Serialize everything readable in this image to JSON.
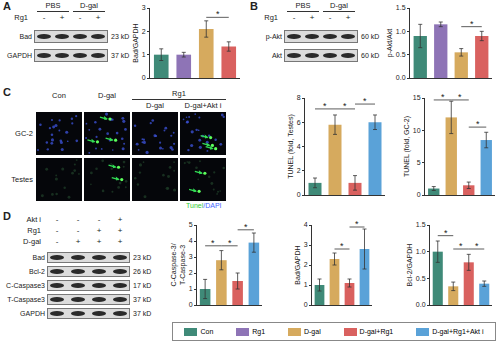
{
  "chart_data": [
    {
      "type": "bar",
      "y_label": "Bad/GAPDH",
      "categories": [
        "Con",
        "Rg1",
        "D-gal",
        "D-gal+Rg1"
      ],
      "values": [
        1.0,
        1.0,
        2.1,
        1.35
      ],
      "errors": [
        0.25,
        0.1,
        0.35,
        0.2
      ],
      "colors": [
        "#3f8a78",
        "#8e74b6",
        "#d6aa5e",
        "#d9615f"
      ],
      "ylim": [
        0,
        3
      ],
      "yticks": [
        0,
        1,
        2,
        3
      ],
      "tick_labels": "y",
      "annotations": [
        {
          "text": "*",
          "from": 2,
          "to": 3,
          "y": 2.6
        }
      ]
    },
    {
      "type": "bar",
      "y_label": "p-Akt/Akt",
      "categories": [
        "Con",
        "Rg1",
        "D-gal",
        "D-gal+Rg1"
      ],
      "values": [
        0.9,
        1.15,
        0.55,
        0.9
      ],
      "errors": [
        0.25,
        0.05,
        0.08,
        0.1
      ],
      "colors": [
        "#3f8a78",
        "#8e74b6",
        "#d6aa5e",
        "#d9615f"
      ],
      "ylim": [
        0,
        1.5
      ],
      "yticks": [
        {
          "value": 0,
          "label": "0.0"
        },
        0.5,
        {
          "value": 1,
          "label": "1.0"
        },
        1.5
      ],
      "tick_labels": "y",
      "annotations": [
        {
          "text": "*",
          "from": 2,
          "to": 3,
          "y": 1.1
        }
      ]
    },
    {
      "type": "bar",
      "y_label": "TUNEL (fold, Testes)",
      "categories": [
        "Con",
        "D-gal",
        "D-gal+Rg1",
        "D-gal+Rg1+Akt i"
      ],
      "values": [
        1.0,
        5.8,
        1.0,
        6.0
      ],
      "errors": [
        0.4,
        0.8,
        0.6,
        0.6
      ],
      "colors": [
        "#3f8a78",
        "#d6aa5e",
        "#d9615f",
        "#5aa2d8"
      ],
      "ylim": [
        0,
        8
      ],
      "yticks": [
        0,
        2,
        4,
        6,
        8
      ],
      "tick_labels": "y",
      "annotations": [
        {
          "text": "*",
          "from": 0,
          "to": 1,
          "y": 7.1
        },
        {
          "text": "*",
          "from": 1,
          "to": 2,
          "y": 7.1
        },
        {
          "text": "*",
          "from": 2,
          "to": 3,
          "y": 7.5
        }
      ]
    },
    {
      "type": "bar",
      "y_label": "TUNEL (fold, GC-2)",
      "categories": [
        "Con",
        "D-gal",
        "D-gal+Rg1",
        "D-gal+Rg1+Akt i"
      ],
      "values": [
        1.0,
        12.0,
        1.5,
        8.5
      ],
      "errors": [
        0.3,
        2.5,
        0.5,
        1.2
      ],
      "colors": [
        "#3f8a78",
        "#d6aa5e",
        "#d9615f",
        "#5aa2d8"
      ],
      "ylim": [
        0,
        15
      ],
      "yticks": [
        0,
        5,
        10,
        15
      ],
      "tick_labels": "y",
      "annotations": [
        {
          "text": "*",
          "from": 0,
          "to": 1,
          "y": 14.7
        },
        {
          "text": "*",
          "from": 1,
          "to": 2,
          "y": 14.7
        },
        {
          "text": "*",
          "from": 2,
          "to": 3,
          "y": 10.5
        }
      ]
    },
    {
      "type": "bar",
      "y_label": "C-Caspase-3/\nT-Caspase-3",
      "categories": [
        "Con",
        "D-gal",
        "D-gal+Rg1",
        "D-gal+Rg1+Akt i"
      ],
      "values": [
        1.0,
        2.8,
        1.5,
        3.9
      ],
      "errors": [
        0.6,
        0.6,
        0.5,
        0.6
      ],
      "colors": [
        "#3f8a78",
        "#d6aa5e",
        "#d9615f",
        "#5aa2d8"
      ],
      "ylim": [
        0,
        5
      ],
      "yticks": [
        0,
        1,
        2,
        3,
        4,
        5
      ],
      "tick_labels": "y",
      "annotations": [
        {
          "text": "*",
          "from": 0,
          "to": 1,
          "y": 3.7
        },
        {
          "text": "*",
          "from": 1,
          "to": 2,
          "y": 3.7
        },
        {
          "text": "*",
          "from": 2,
          "to": 3,
          "y": 4.7
        }
      ]
    },
    {
      "type": "bar",
      "y_label": "Bad/GAPDH",
      "categories": [
        "Con",
        "D-gal",
        "D-gal+Rg1",
        "D-gal+Rg1+Akt i"
      ],
      "values": [
        1.0,
        2.3,
        1.1,
        2.8
      ],
      "errors": [
        0.3,
        0.3,
        0.2,
        1.0
      ],
      "colors": [
        "#3f8a78",
        "#d6aa5e",
        "#d9615f",
        "#5aa2d8"
      ],
      "ylim": [
        0,
        4
      ],
      "yticks": [
        0,
        1,
        2,
        3,
        4
      ],
      "tick_labels": "y",
      "annotations": [
        {
          "text": "*",
          "from": 1,
          "to": 2,
          "y": 2.8
        },
        {
          "text": "*",
          "from": 2,
          "to": 3,
          "y": 3.9
        }
      ]
    },
    {
      "type": "bar",
      "y_label": "Bcl-2/GAPDH",
      "categories": [
        "Con",
        "D-gal",
        "D-gal+Rg1",
        "D-gal+Rg1+Akt i"
      ],
      "values": [
        1.0,
        0.35,
        0.8,
        0.4
      ],
      "errors": [
        0.2,
        0.08,
        0.15,
        0.05
      ],
      "colors": [
        "#3f8a78",
        "#d6aa5e",
        "#d9615f",
        "#5aa2d8"
      ],
      "ylim": [
        0,
        1.5
      ],
      "yticks": [
        {
          "value": 0,
          "label": "0.0"
        },
        0.5,
        {
          "value": 1,
          "label": "1.0"
        },
        1.5
      ],
      "tick_labels": "y",
      "annotations": [
        {
          "text": "*",
          "from": 0,
          "to": 1,
          "y": 1.3
        },
        {
          "text": "*",
          "from": 1,
          "to": 2,
          "y": 1.05
        },
        {
          "text": "*",
          "from": 2,
          "to": 3,
          "y": 1.05
        }
      ]
    }
  ],
  "figure": {
    "panel_labels": [
      "A",
      "B",
      "C",
      "D"
    ],
    "blots": [
      {
        "groups": [
          {
            "text": "PBS",
            "lanes": [
              0,
              1
            ]
          },
          {
            "text": "D-gal",
            "lanes": [
              2,
              3
            ]
          }
        ],
        "treatments": [
          {
            "name": "Rg1",
            "signs": [
              "-",
              "+",
              "-",
              "+"
            ]
          }
        ],
        "bands": [
          {
            "name": "Bad",
            "size": "23 kD"
          },
          {
            "name": "GAPDH",
            "size": "37 kD"
          }
        ]
      },
      {
        "groups": [
          {
            "text": "PBS",
            "lanes": [
              0,
              1
            ]
          },
          {
            "text": "D-gal",
            "lanes": [
              2,
              3
            ]
          }
        ],
        "treatments": [
          {
            "name": "Rg1",
            "signs": [
              "-",
              "+",
              "-",
              "+"
            ]
          }
        ],
        "bands": [
          {
            "name": "p-Akt",
            "size": "60 kD"
          },
          {
            "name": "Akt",
            "size": "60 kD"
          }
        ]
      },
      {
        "groups": [],
        "treatments": [
          {
            "name": "Akt i",
            "signs": [
              "-",
              "-",
              "-",
              "+"
            ]
          },
          {
            "name": "Rg1",
            "signs": [
              "-",
              "-",
              "+",
              "+"
            ]
          },
          {
            "name": "D-gal",
            "signs": [
              "-",
              "+",
              "+",
              "+"
            ]
          }
        ],
        "bands": [
          {
            "name": "Bad",
            "size": "23 kD"
          },
          {
            "name": "Bcl-2",
            "size": "26 kD"
          },
          {
            "name": "C-Caspase3",
            "size": "17 kD"
          },
          {
            "name": "T-Caspase3",
            "size": "37 kD"
          },
          {
            "name": "GAPDH",
            "size": "37 kD"
          }
        ]
      }
    ],
    "images": {
      "columns": [
        "Con",
        "D-gal",
        "D-gal",
        "D-gal+Akt i"
      ],
      "column_group": {
        "text": "Rg1",
        "columns": [
          2,
          3
        ]
      },
      "rows": [
        "GC-2",
        "Testes"
      ],
      "marked_columns": [
        1,
        3
      ],
      "caption": [
        {
          "text": "Tunel",
          "color": "#33cc33"
        },
        {
          "text": "/DAPI",
          "color": "#4466ff"
        }
      ]
    },
    "legend": [
      {
        "name": "Con",
        "color": "#3f8a78"
      },
      {
        "name": "Rg1",
        "color": "#8e74b6"
      },
      {
        "name": "D-gal",
        "color": "#d6aa5e"
      },
      {
        "name": "D-gal+Rg1",
        "color": "#d9615f"
      },
      {
        "name": "D-gal+Rg1+Akt i",
        "color": "#5aa2d8"
      }
    ]
  }
}
